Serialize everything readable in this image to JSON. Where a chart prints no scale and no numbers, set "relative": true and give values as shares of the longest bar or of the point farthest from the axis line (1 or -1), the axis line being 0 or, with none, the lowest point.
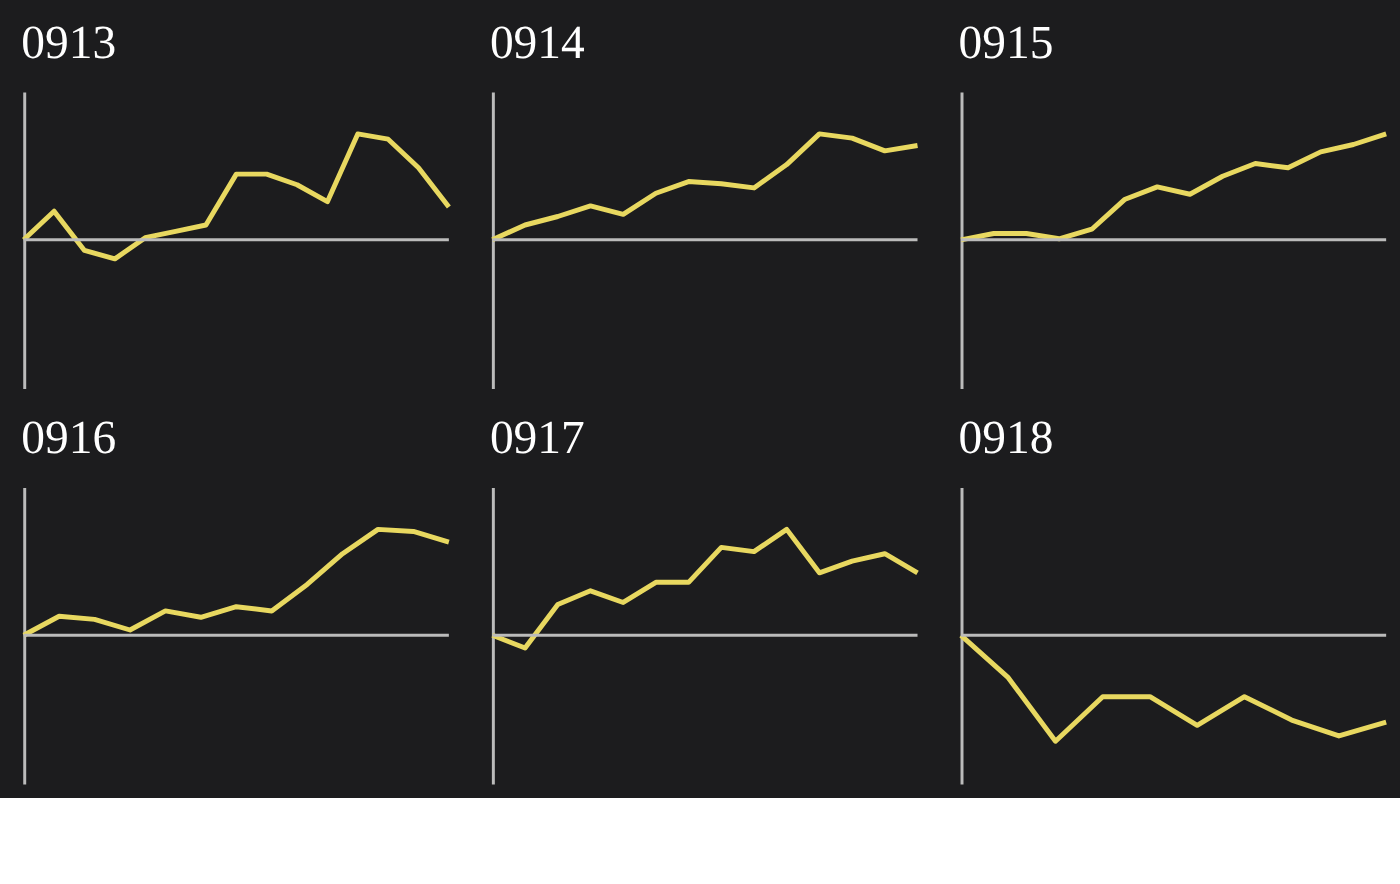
{
  "chart_data": [
    {
      "type": "line",
      "title": "0913",
      "relative": true,
      "categories": [
        null,
        null,
        null,
        null,
        null,
        null,
        null,
        null,
        null,
        null,
        null,
        null,
        null,
        null,
        null
      ],
      "series": [
        {
          "color": "#e8d860",
          "values": [
            0,
            0.27,
            -0.1,
            -0.18,
            0.02,
            0.08,
            0.14,
            0.62,
            0.62,
            0.52,
            0.36,
            1,
            0.95,
            0.68,
            0.31
          ]
        }
      ]
    },
    {
      "type": "line",
      "title": "0914",
      "relative": true,
      "categories": [
        null,
        null,
        null,
        null,
        null,
        null,
        null,
        null,
        null,
        null,
        null,
        null,
        null,
        null
      ],
      "series": [
        {
          "color": "#e8d860",
          "values": [
            0,
            0.14,
            0.22,
            0.32,
            0.24,
            0.44,
            0.55,
            0.53,
            0.49,
            0.71,
            1,
            0.96,
            0.84,
            0.89
          ]
        }
      ]
    },
    {
      "type": "line",
      "title": "0915",
      "relative": true,
      "categories": [
        null,
        null,
        null,
        null,
        null,
        null,
        null,
        null,
        null,
        null,
        null,
        null,
        null,
        null
      ],
      "series": [
        {
          "color": "#e8d860",
          "values": [
            0,
            0.06,
            0.06,
            0.01,
            0.1,
            0.38,
            0.5,
            0.43,
            0.6,
            0.72,
            0.68,
            0.83,
            0.9,
            1
          ]
        }
      ]
    },
    {
      "type": "line",
      "title": "0916",
      "relative": true,
      "categories": [
        null,
        null,
        null,
        null,
        null,
        null,
        null,
        null,
        null,
        null,
        null,
        null,
        null
      ],
      "series": [
        {
          "color": "#e8d860",
          "values": [
            0,
            0.18,
            0.15,
            0.05,
            0.23,
            0.17,
            0.27,
            0.23,
            0.48,
            0.77,
            1,
            0.98,
            0.88
          ]
        }
      ]
    },
    {
      "type": "line",
      "title": "0917",
      "relative": true,
      "categories": [
        null,
        null,
        null,
        null,
        null,
        null,
        null,
        null,
        null,
        null,
        null,
        null,
        null,
        null
      ],
      "series": [
        {
          "color": "#e8d860",
          "values": [
            0,
            -0.12,
            0.29,
            0.42,
            0.31,
            0.5,
            0.5,
            0.83,
            0.79,
            1,
            0.59,
            0.7,
            0.77,
            0.59
          ]
        }
      ]
    },
    {
      "type": "line",
      "title": "0918",
      "relative": true,
      "categories": [
        null,
        null,
        null,
        null,
        null,
        null,
        null,
        null,
        null,
        null
      ],
      "series": [
        {
          "color": "#e8d860",
          "values": [
            0,
            -0.4,
            -1,
            -0.58,
            -0.58,
            -0.85,
            -0.58,
            -0.8,
            -0.95,
            -0.82
          ]
        }
      ]
    }
  ]
}
